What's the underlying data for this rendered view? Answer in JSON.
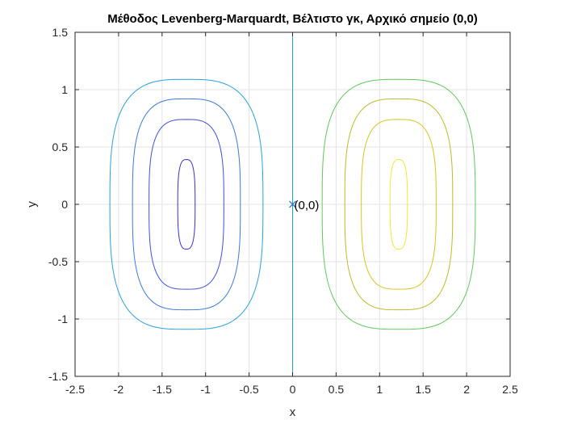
{
  "chart_data": {
    "type": "contour",
    "title": "Μέθοδος Levenberg-Marquardt, Βέλτιστο γκ, Αρχικό σημείο (0,0)",
    "xlabel": "x",
    "ylabel": "y",
    "xlim": [
      -2.5,
      2.5
    ],
    "ylim": [
      -1.5,
      1.5
    ],
    "xticks": [
      -2.5,
      -2,
      -1.5,
      -1,
      -0.5,
      0,
      0.5,
      1,
      1.5,
      2,
      2.5
    ],
    "yticks": [
      -1.5,
      -1,
      -0.5,
      0,
      0.5,
      1,
      1.5
    ],
    "xtick_labels": [
      "-2.5",
      "-2",
      "-1.5",
      "-1",
      "-0.5",
      "0",
      "0.5",
      "1",
      "1.5",
      "2",
      "2.5"
    ],
    "ytick_labels": [
      "-1.5",
      "-1",
      "-0.5",
      "0",
      "0.5",
      "1",
      "1.5"
    ],
    "grid": true,
    "contours": [
      {
        "center_x": -1.22,
        "half_width": 0.1,
        "half_height": 0.39,
        "color": "#3d2fd0"
      },
      {
        "center_x": -1.22,
        "half_width": 0.43,
        "half_height": 0.74,
        "color": "#3f52d8"
      },
      {
        "center_x": -1.22,
        "half_width": 0.62,
        "half_height": 0.92,
        "color": "#3a7bd8"
      },
      {
        "center_x": -1.22,
        "half_width": 0.88,
        "half_height": 1.09,
        "color": "#2aa0dc"
      },
      {
        "center_x": 1.22,
        "half_width": 0.1,
        "half_height": 0.39,
        "color": "#f5e733"
      },
      {
        "center_x": 1.22,
        "half_width": 0.43,
        "half_height": 0.74,
        "color": "#d9c421"
      },
      {
        "center_x": 1.22,
        "half_width": 0.62,
        "half_height": 0.92,
        "color": "#bcbc2b"
      },
      {
        "center_x": 1.22,
        "half_width": 0.88,
        "half_height": 1.09,
        "color": "#5fc85b"
      }
    ],
    "vertical_line": {
      "x": 0,
      "color": "#1aacb8"
    },
    "marker": {
      "x": 0,
      "y": 0,
      "symbol": "x",
      "color": "#2a6bd6",
      "label": "(0,0)"
    }
  }
}
